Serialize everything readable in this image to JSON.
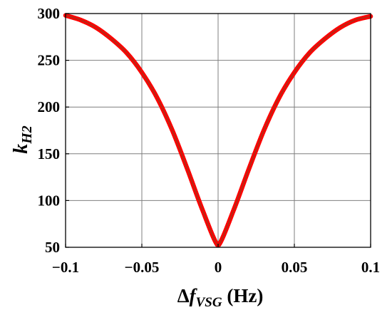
{
  "chart_data": {
    "type": "line",
    "title": "",
    "xlabel": {
      "prefix": "Δ",
      "var": "f",
      "sub": "VSG",
      "unit": " (Hz)"
    },
    "ylabel": {
      "var": "k",
      "sub": "H2"
    },
    "xlim": [
      -0.1,
      0.1
    ],
    "ylim": [
      50,
      300
    ],
    "grid": true,
    "legend": "none",
    "x_ticks": [
      {
        "value": -0.1,
        "label": "−0.1"
      },
      {
        "value": -0.05,
        "label": "−0.05"
      },
      {
        "value": 0,
        "label": "0"
      },
      {
        "value": 0.05,
        "label": "0.05"
      },
      {
        "value": 0.1,
        "label": "0.1"
      }
    ],
    "y_ticks": [
      {
        "value": 50,
        "label": "50"
      },
      {
        "value": 100,
        "label": "100"
      },
      {
        "value": 150,
        "label": "150"
      },
      {
        "value": 200,
        "label": "200"
      },
      {
        "value": 250,
        "label": "250"
      },
      {
        "value": 300,
        "label": "300"
      }
    ],
    "series": [
      {
        "color": "#ff0000",
        "points": [
          [
            -0.1,
            298
          ],
          [
            -0.09,
            293
          ],
          [
            -0.08,
            285
          ],
          [
            -0.07,
            273
          ],
          [
            -0.06,
            258
          ],
          [
            -0.05,
            237
          ],
          [
            -0.04,
            210
          ],
          [
            -0.03,
            175
          ],
          [
            -0.02,
            133
          ],
          [
            -0.01,
            89
          ],
          [
            0,
            52
          ],
          [
            0.01,
            89
          ],
          [
            0.02,
            133
          ],
          [
            0.03,
            175
          ],
          [
            0.04,
            210
          ],
          [
            0.05,
            237
          ],
          [
            0.06,
            258
          ],
          [
            0.07,
            273
          ],
          [
            0.08,
            285
          ],
          [
            0.09,
            293
          ],
          [
            0.1,
            297
          ]
        ]
      }
    ],
    "colors": {
      "line": "#ff0000",
      "line_shadow": "#7a4a2a",
      "grid": "#7f7f7f",
      "axes": "#000000"
    }
  }
}
